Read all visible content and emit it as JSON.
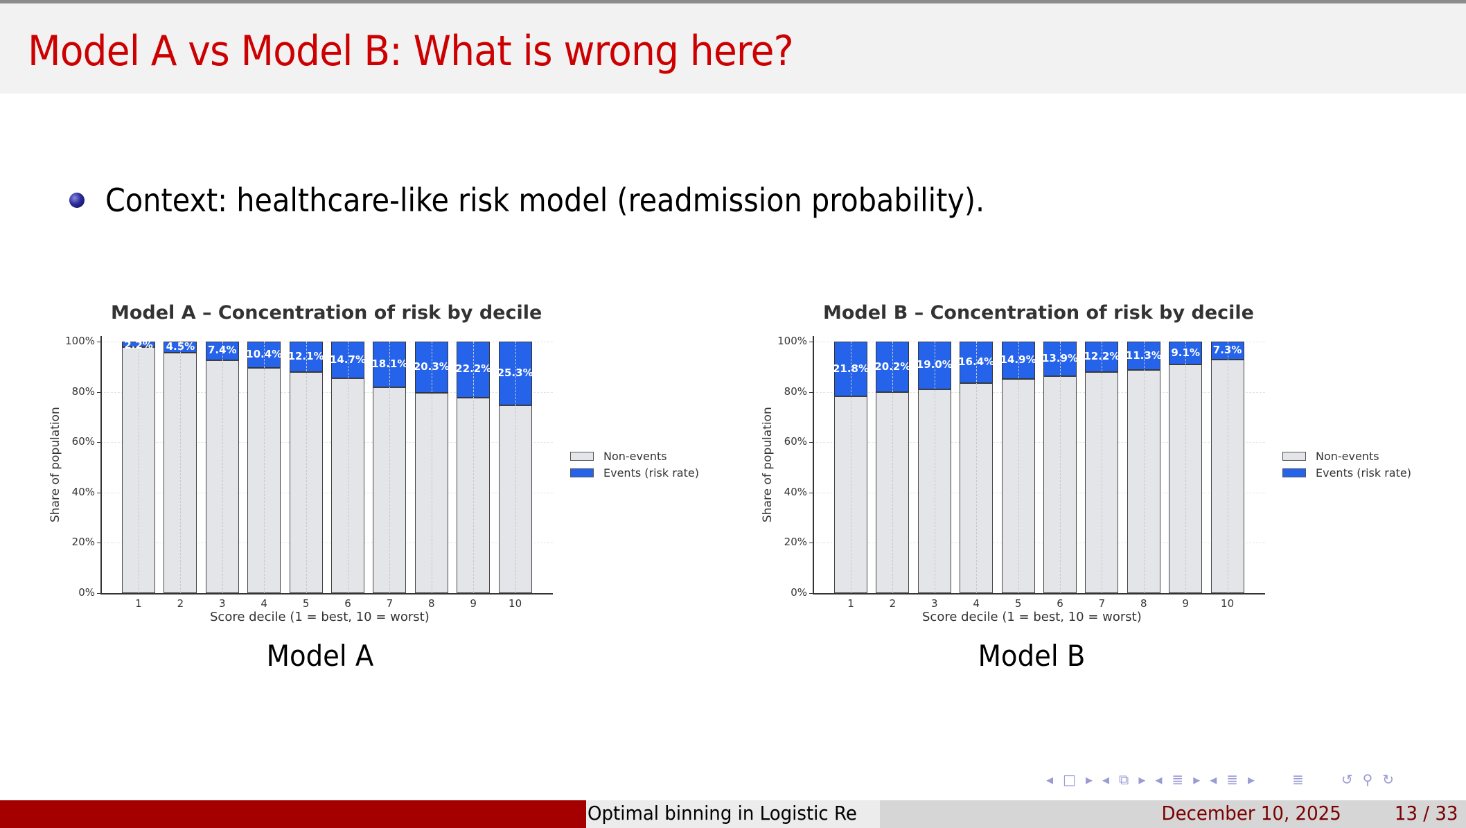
{
  "slide": {
    "title": "Model A vs Model B: What is wrong here?",
    "bullets": [
      {
        "text": "Context: healthcare-like risk model (readmission probability)."
      }
    ],
    "captions": [
      "Model A",
      "Model B"
    ]
  },
  "footer": {
    "presentation_title": "Optimal binning in Logistic Re",
    "date": "December 10, 2025",
    "page": "13 / 33",
    "nav_icons": [
      "nav-prev-slide-icon",
      "slide-icon",
      "nav-next-slide-icon",
      "nav-prev-frame-icon",
      "frame-icon",
      "nav-next-frame-icon",
      "nav-prev-subsection-icon",
      "subsection-icon",
      "nav-next-subsection-icon",
      "nav-prev-section-icon",
      "section-icon",
      "nav-next-section-icon",
      "toc-icon",
      "undo-icon",
      "search-icon",
      "redo-icon"
    ]
  },
  "colors": {
    "title": "#cc0000",
    "non_events": "#e4e5e9",
    "events": "#2563eb",
    "footer_left": "#a50000",
    "footer_text": "#7a0000"
  },
  "chart_data": [
    {
      "type": "bar",
      "stacked": true,
      "title": "Model A – Concentration of risk by decile",
      "xlabel": "Score decile (1 = best, 10 = worst)",
      "ylabel": "Share of population",
      "categories": [
        "1",
        "2",
        "3",
        "4",
        "5",
        "6",
        "7",
        "8",
        "9",
        "10"
      ],
      "yticks": [
        "0%",
        "20%",
        "40%",
        "60%",
        "80%",
        "100%"
      ],
      "ylim": [
        0,
        100
      ],
      "series": [
        {
          "name": "Non-events",
          "values": [
            97.8,
            95.5,
            92.6,
            89.6,
            87.9,
            85.3,
            81.9,
            79.7,
            77.8,
            74.7
          ]
        },
        {
          "name": "Events (risk rate)",
          "values": [
            2.2,
            4.5,
            7.4,
            10.4,
            12.1,
            14.7,
            18.1,
            20.3,
            22.2,
            25.3
          ]
        }
      ],
      "labels": [
        "2.2%",
        "4.5%",
        "7.4%",
        "10.4%",
        "12.1%",
        "14.7%",
        "18.1%",
        "20.3%",
        "22.2%",
        "25.3%"
      ],
      "legend": [
        "Non-events",
        "Events (risk rate)"
      ],
      "legend_position": "right",
      "grid": true
    },
    {
      "type": "bar",
      "stacked": true,
      "title": "Model B – Concentration of risk by decile",
      "xlabel": "Score decile (1 = best, 10 = worst)",
      "ylabel": "Share of population",
      "categories": [
        "1",
        "2",
        "3",
        "4",
        "5",
        "6",
        "7",
        "8",
        "9",
        "10"
      ],
      "yticks": [
        "0%",
        "20%",
        "40%",
        "60%",
        "80%",
        "100%"
      ],
      "ylim": [
        0,
        100
      ],
      "series": [
        {
          "name": "Non-events",
          "values": [
            78.2,
            79.8,
            81.0,
            83.6,
            85.1,
            86.1,
            87.8,
            88.7,
            90.9,
            92.7
          ]
        },
        {
          "name": "Events (risk rate)",
          "values": [
            21.8,
            20.2,
            19.0,
            16.4,
            14.9,
            13.9,
            12.2,
            11.3,
            9.1,
            7.3
          ]
        }
      ],
      "labels": [
        "21.8%",
        "20.2%",
        "19.0%",
        "16.4%",
        "14.9%",
        "13.9%",
        "12.2%",
        "11.3%",
        "9.1%",
        "7.3%"
      ],
      "legend": [
        "Non-events",
        "Events (risk rate)"
      ],
      "legend_position": "right",
      "grid": true
    }
  ]
}
